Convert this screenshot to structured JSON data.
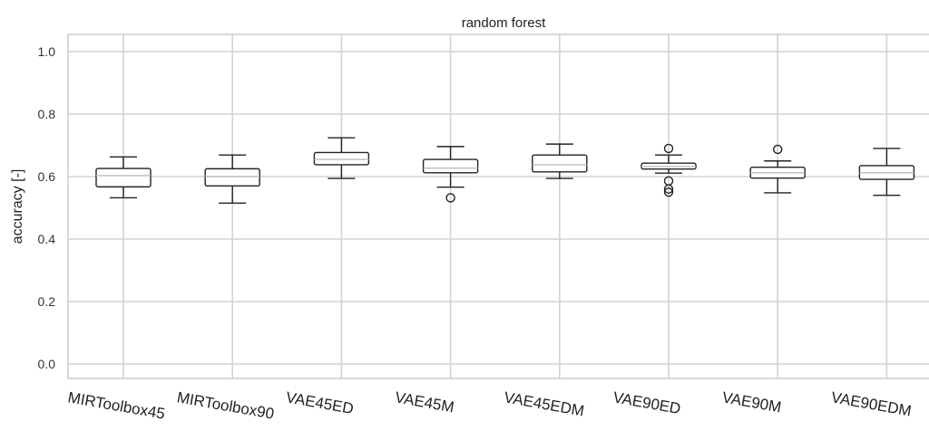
{
  "chart_data": {
    "type": "boxplot",
    "title": "random forest",
    "ylabel": "accuracy [-]",
    "xlabel": "",
    "ylim": [
      -0.05,
      1.05
    ],
    "yticks": [
      0.0,
      0.2,
      0.4,
      0.6,
      0.8,
      1.0
    ],
    "ytick_labels": [
      "0.0",
      "0.2",
      "0.4",
      "0.6",
      "0.8",
      "1.0"
    ],
    "grid": true,
    "categories": [
      "MIRToolbox45",
      "MIRToolbox90",
      "VAE45ED",
      "VAE45M",
      "VAE45EDM",
      "VAE90ED",
      "VAE90M",
      "VAE90EDM"
    ],
    "boxes": [
      {
        "label": "MIRToolbox45",
        "whislo": 0.532,
        "q1": 0.567,
        "med": 0.603,
        "q3": 0.626,
        "whishi": 0.663,
        "fliers": []
      },
      {
        "label": "MIRToolbox90",
        "whislo": 0.515,
        "q1": 0.57,
        "med": 0.6,
        "q3": 0.625,
        "whishi": 0.669,
        "fliers": []
      },
      {
        "label": "VAE45ED",
        "whislo": 0.594,
        "q1": 0.638,
        "med": 0.655,
        "q3": 0.677,
        "whishi": 0.724,
        "fliers": []
      },
      {
        "label": "VAE45M",
        "whislo": 0.566,
        "q1": 0.612,
        "med": 0.627,
        "q3": 0.655,
        "whishi": 0.696,
        "fliers": [
          0.532
        ]
      },
      {
        "label": "VAE45EDM",
        "whislo": 0.594,
        "q1": 0.615,
        "med": 0.638,
        "q3": 0.669,
        "whishi": 0.704,
        "fliers": []
      },
      {
        "label": "VAE90ED",
        "whislo": 0.611,
        "q1": 0.624,
        "med": 0.632,
        "q3": 0.643,
        "whishi": 0.669,
        "fliers": [
          0.69,
          0.586,
          0.56,
          0.55
        ]
      },
      {
        "label": "VAE90M",
        "whislo": 0.548,
        "q1": 0.595,
        "med": 0.612,
        "q3": 0.63,
        "whishi": 0.65,
        "fliers": [
          0.687
        ]
      },
      {
        "label": "VAE90EDM",
        "whislo": 0.54,
        "q1": 0.591,
        "med": 0.612,
        "q3": 0.635,
        "whishi": 0.69,
        "fliers": []
      }
    ]
  }
}
